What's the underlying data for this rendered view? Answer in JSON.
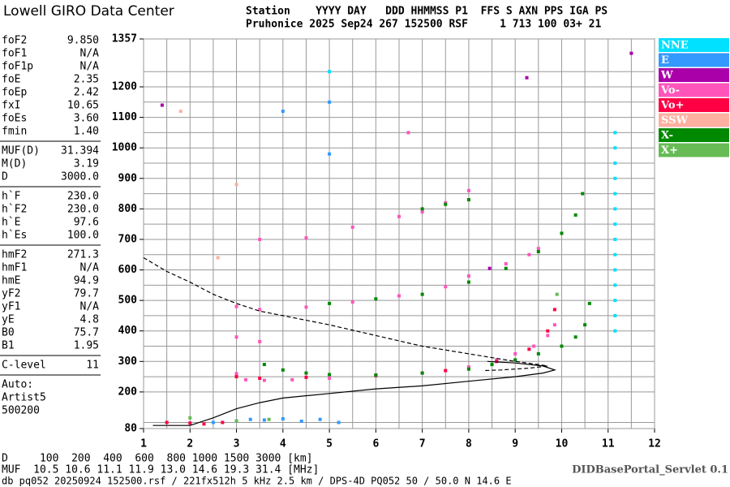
{
  "header": {
    "logo": "Lowell GIRO Data Center",
    "lines": [
      "Station    YYYY DAY   DDD HHMMSS P1  FFS S AXN PPS IGA PS",
      "Pruhonice 2025 Sep24 267 152500 RSF     1 713 100 03+ 21"
    ]
  },
  "parameter_groups": [
    [
      [
        "foF2",
        "9.850"
      ],
      [
        "foF1",
        "N/A"
      ],
      [
        "foF1p",
        "N/A"
      ],
      [
        "foE",
        "2.35"
      ],
      [
        "foEp",
        "2.42"
      ],
      [
        "fxI",
        "10.65"
      ],
      [
        "foEs",
        "3.60"
      ],
      [
        "fmin",
        "1.40"
      ]
    ],
    [
      [
        "MUF(D)",
        "31.394"
      ],
      [
        "M(D)",
        "3.19"
      ],
      [
        "D",
        "3000.0"
      ]
    ],
    [
      [
        "h`F",
        "230.0"
      ],
      [
        "h`F2",
        "230.0"
      ],
      [
        "h`E",
        "97.6"
      ],
      [
        "h`Es",
        "100.0"
      ]
    ],
    [
      [
        "hmF2",
        "271.3"
      ],
      [
        "hmF1",
        "N/A"
      ],
      [
        "hmE",
        "94.9"
      ],
      [
        "yF2",
        "79.7"
      ],
      [
        "yF1",
        "N/A"
      ],
      [
        "yE",
        "4.8"
      ],
      [
        "B0",
        "75.7"
      ],
      [
        "B1",
        "1.95"
      ]
    ],
    [
      [
        "C-level",
        "11"
      ]
    ]
  ],
  "autoscaling": [
    "Auto:",
    "Artist5",
    "500200"
  ],
  "footer": {
    "distance_row": "D     100  200  400  600  800 1000 1500 3000 [km]",
    "muf_row": "MUF  10.5 10.6 11.1 11.9 13.0 14.6 19.3 31.4 [MHz]",
    "file_row": "db pq052 20250924 152500.rsf / 221fx512h 5 kHz 2.5 km / DPS-4D PQ052 50 / 50.0 N 14.6 E",
    "servlet": "DIDBasePortal_Servlet 0.1"
  },
  "chart_data": {
    "type": "scatter",
    "xlim": [
      1,
      12
    ],
    "ylim": [
      80,
      1357
    ],
    "xticks": [
      1,
      2,
      3,
      4,
      5,
      6,
      7,
      8,
      9,
      10,
      11,
      12
    ],
    "x_minor_ticks": [
      1.5,
      2.5,
      3.5,
      4.5,
      5.5,
      6.5,
      7.5,
      8.5,
      9.5,
      10.5,
      11.5
    ],
    "yticks": [
      80,
      200,
      300,
      400,
      500,
      600,
      700,
      800,
      900,
      1000,
      1100,
      1200,
      1357
    ],
    "y_minor_ticks": [
      100,
      250,
      350,
      450,
      550,
      650,
      750,
      850,
      950,
      1050,
      1150,
      1250
    ],
    "grid": true,
    "series": [
      {
        "name": "NNE",
        "color": "#00e0ff",
        "x": [
          11.15,
          11.15,
          11.15,
          11.15,
          11.15,
          11.15,
          11.15,
          11.15,
          11.15,
          11.15,
          11.15,
          11.15,
          11.15,
          11.15,
          5.0
        ],
        "y": [
          400,
          450,
          500,
          550,
          600,
          650,
          700,
          750,
          800,
          850,
          900,
          950,
          1000,
          1050,
          1250
        ]
      },
      {
        "name": "E",
        "color": "#3399ff",
        "x": [
          2.5,
          3.0,
          3.3,
          3.6,
          4.0,
          4.4,
          4.8,
          5.0,
          5.2,
          5.0,
          4.0
        ],
        "y": [
          100,
          105,
          110,
          108,
          112,
          104,
          110,
          1150,
          100,
          980,
          1120
        ]
      },
      {
        "name": "W",
        "color": "#aa00aa",
        "x": [
          1.4,
          9.25,
          11.5,
          8.45
        ],
        "y": [
          1140,
          1230,
          1310,
          605
        ]
      },
      {
        "name": "Vo-",
        "color": "#ff55bb",
        "x": [
          3.0,
          3.2,
          3.6,
          4.2,
          5.0,
          6.0,
          7.0,
          8.0,
          8.6,
          9.0,
          9.4,
          9.7,
          9.85,
          3.0,
          3.5,
          4.5,
          5.5,
          6.5,
          7.5,
          8.0,
          8.8,
          9.3,
          9.5,
          3.5,
          4.5,
          5.5,
          6.5,
          7.0,
          7.5,
          8.0,
          3.0,
          3.5,
          6.7
        ],
        "y": [
          260,
          240,
          238,
          240,
          245,
          252,
          262,
          282,
          305,
          325,
          350,
          385,
          420,
          480,
          470,
          478,
          495,
          515,
          545,
          580,
          620,
          650,
          670,
          700,
          705,
          740,
          775,
          790,
          820,
          860,
          380,
          365,
          1050
        ]
      },
      {
        "name": "Vo+",
        "color": "#ff0044",
        "x": [
          1.5,
          2.0,
          2.3,
          2.7,
          3.0,
          3.5,
          4.5,
          6.0,
          7.5,
          8.6,
          9.3,
          9.7,
          9.85
        ],
        "y": [
          100,
          98,
          95,
          100,
          250,
          245,
          248,
          255,
          270,
          300,
          340,
          400,
          470
        ]
      },
      {
        "name": "SSW",
        "color": "#ffb0a0",
        "x": [
          1.8,
          2.6,
          3.0
        ],
        "y": [
          1120,
          640,
          880
        ]
      },
      {
        "name": "X-",
        "color": "#008800",
        "x": [
          3.6,
          4.0,
          4.5,
          5.0,
          6.0,
          7.0,
          8.0,
          8.5,
          9.0,
          9.5,
          10.0,
          10.3,
          10.5,
          10.6,
          5.0,
          6.0,
          7.0,
          8.0,
          8.8,
          9.5,
          10.0,
          10.3,
          10.45,
          7.0,
          7.5,
          8.0
        ],
        "y": [
          290,
          272,
          262,
          257,
          255,
          262,
          275,
          290,
          305,
          325,
          350,
          380,
          420,
          490,
          490,
          505,
          520,
          560,
          605,
          660,
          720,
          780,
          850,
          800,
          815,
          830
        ]
      },
      {
        "name": "X+",
        "color": "#66bb55",
        "x": [
          2.0,
          3.0,
          3.7,
          9.9
        ],
        "y": [
          115,
          105,
          110,
          520
        ]
      }
    ],
    "profile": {
      "x": [
        1.2,
        2.0,
        2.5,
        3.0,
        3.5,
        4.0,
        5.0,
        6.0,
        7.0,
        8.0,
        9.0,
        9.6,
        9.85,
        9.6,
        9.0,
        8.4
      ],
      "y": [
        90,
        90,
        115,
        145,
        165,
        180,
        195,
        210,
        220,
        235,
        250,
        262,
        272,
        285,
        295,
        300
      ]
    },
    "muf_curve": {
      "x": [
        1.0,
        1.5,
        2.0,
        2.5,
        3.0,
        3.5,
        4.0,
        5.0,
        6.0,
        7.0,
        8.0,
        9.0,
        9.5,
        9.7,
        9.3,
        8.7,
        8.3
      ],
      "y": [
        640,
        595,
        560,
        520,
        490,
        465,
        450,
        420,
        385,
        350,
        325,
        300,
        290,
        285,
        278,
        272,
        270
      ]
    }
  }
}
